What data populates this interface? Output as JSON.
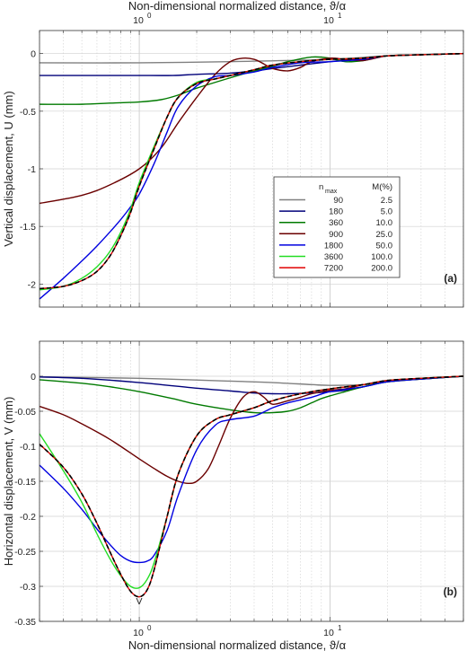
{
  "figure": {
    "top_xlabel": "Non-dimensional normalized distance, ϑ/α",
    "bottom_xlabel": "Non-dimensional normalized distance, ϑ/α",
    "x_tick_labels": [
      "10",
      "10"
    ],
    "x_tick_exponents": [
      "0",
      "1"
    ],
    "v_marker": "V"
  },
  "legend": {
    "header_n": "n",
    "header_n_sub": "max",
    "header_m": "M(%)",
    "entries": [
      {
        "n": "90",
        "m": "2.5",
        "color": "#808080"
      },
      {
        "n": "180",
        "m": "5.0",
        "color": "#00007a"
      },
      {
        "n": "360",
        "m": "10.0",
        "color": "#007a00"
      },
      {
        "n": "900",
        "m": "25.0",
        "color": "#6b0000"
      },
      {
        "n": "1800",
        "m": "50.0",
        "color": "#0000e0"
      },
      {
        "n": "3600",
        "m": "100.0",
        "color": "#22dd22"
      },
      {
        "n": "7200",
        "m": "200.0",
        "color": "#e00000"
      }
    ],
    "exact_style": "black dashed"
  },
  "chart_data": [
    {
      "type": "line",
      "panel_label": "(a)",
      "xlabel": "Non-dimensional normalized distance, ϑ/α",
      "ylabel": "Vertical displacement, U (mm)",
      "xscale": "log",
      "xlim": [
        0.3,
        50
      ],
      "ylim": [
        -2.2,
        0.2
      ],
      "yticks": [
        "0",
        "-0.5",
        "-1",
        "-1.5",
        "-2"
      ],
      "grid": true,
      "legend_position": "right",
      "series": [
        {
          "name": "90",
          "color": "#808080",
          "x": [
            0.3,
            1,
            3,
            10,
            20,
            50
          ],
          "y": [
            -0.08,
            -0.08,
            -0.07,
            -0.05,
            -0.02,
            0
          ]
        },
        {
          "name": "180",
          "color": "#00007a",
          "x": [
            0.3,
            0.5,
            0.7,
            1,
            1.5,
            2,
            3,
            4,
            5,
            7,
            10,
            15,
            20,
            30,
            50
          ],
          "y": [
            -0.19,
            -0.19,
            -0.19,
            -0.19,
            -0.19,
            -0.18,
            -0.17,
            -0.15,
            -0.13,
            -0.1,
            -0.07,
            -0.04,
            -0.02,
            -0.01,
            0
          ]
        },
        {
          "name": "360",
          "color": "#007a00",
          "x": [
            0.3,
            0.5,
            0.7,
            1,
            1.3,
            1.6,
            2,
            3,
            4,
            5,
            6,
            8,
            10,
            12,
            15,
            20,
            30,
            50
          ],
          "y": [
            -0.44,
            -0.44,
            -0.43,
            -0.42,
            -0.4,
            -0.36,
            -0.3,
            -0.21,
            -0.15,
            -0.11,
            -0.07,
            -0.03,
            -0.04,
            -0.07,
            -0.06,
            -0.02,
            -0.01,
            0
          ]
        },
        {
          "name": "900",
          "color": "#6b0000",
          "x": [
            0.3,
            0.5,
            0.7,
            1,
            1.3,
            1.6,
            2,
            2.5,
            3,
            3.5,
            4,
            4.5,
            5,
            6,
            7,
            8,
            10,
            12,
            15,
            20,
            30,
            50
          ],
          "y": [
            -1.3,
            -1.23,
            -1.14,
            -1.0,
            -0.82,
            -0.6,
            -0.38,
            -0.18,
            -0.07,
            -0.04,
            -0.05,
            -0.09,
            -0.13,
            -0.15,
            -0.12,
            -0.07,
            -0.04,
            -0.05,
            -0.06,
            -0.02,
            -0.01,
            0
          ]
        },
        {
          "name": "1800",
          "color": "#0000e0",
          "x": [
            0.3,
            0.4,
            0.5,
            0.6,
            0.7,
            0.8,
            0.9,
            1,
            1.2,
            1.4,
            1.6,
            2,
            2.5,
            3,
            4,
            5,
            7,
            10,
            15,
            20,
            30,
            50
          ],
          "y": [
            -2.13,
            -1.95,
            -1.8,
            -1.67,
            -1.55,
            -1.44,
            -1.33,
            -1.22,
            -0.95,
            -0.68,
            -0.46,
            -0.28,
            -0.2,
            -0.19,
            -0.16,
            -0.12,
            -0.08,
            -0.07,
            -0.05,
            -0.02,
            -0.01,
            0
          ]
        },
        {
          "name": "3600",
          "color": "#22dd22",
          "x": [
            0.3,
            0.4,
            0.5,
            0.6,
            0.7,
            0.8,
            0.9,
            1,
            1.2,
            1.4,
            1.6,
            2,
            2.5,
            3,
            4,
            5,
            7,
            10,
            15,
            20,
            30,
            50
          ],
          "y": [
            -2.05,
            -2.02,
            -1.95,
            -1.85,
            -1.72,
            -1.55,
            -1.35,
            -1.12,
            -0.8,
            -0.55,
            -0.38,
            -0.25,
            -0.22,
            -0.19,
            -0.14,
            -0.1,
            -0.07,
            -0.05,
            -0.04,
            -0.02,
            -0.01,
            0
          ]
        },
        {
          "name": "7200",
          "color": "#e00000",
          "x": [
            0.3,
            0.4,
            0.5,
            0.6,
            0.7,
            0.8,
            0.9,
            1,
            1.2,
            1.4,
            1.6,
            2,
            2.5,
            3,
            4,
            5,
            7,
            10,
            15,
            20,
            30,
            50
          ],
          "y": [
            -2.04,
            -2.02,
            -1.97,
            -1.89,
            -1.76,
            -1.58,
            -1.38,
            -1.15,
            -0.82,
            -0.55,
            -0.38,
            -0.26,
            -0.22,
            -0.19,
            -0.14,
            -0.1,
            -0.07,
            -0.05,
            -0.04,
            -0.02,
            -0.01,
            0
          ]
        },
        {
          "name": "",
          "dashed": true,
          "color": "#000000",
          "x": [
            0.3,
            0.4,
            0.5,
            0.6,
            0.7,
            0.8,
            0.9,
            1,
            1.2,
            1.4,
            1.6,
            2,
            2.5,
            3,
            4,
            5,
            7,
            10,
            15,
            20,
            30,
            50
          ],
          "y": [
            -2.04,
            -2.02,
            -1.97,
            -1.89,
            -1.76,
            -1.58,
            -1.38,
            -1.15,
            -0.82,
            -0.55,
            -0.38,
            -0.26,
            -0.22,
            -0.19,
            -0.14,
            -0.1,
            -0.07,
            -0.05,
            -0.04,
            -0.02,
            -0.01,
            0
          ]
        }
      ]
    },
    {
      "type": "line",
      "panel_label": "(b)",
      "xlabel": "Non-dimensional normalized distance, ϑ/α",
      "ylabel": "Horizontal displacement, V (mm)",
      "xscale": "log",
      "xlim": [
        0.3,
        50
      ],
      "ylim": [
        -0.35,
        0.05
      ],
      "yticks": [
        "0",
        "-0.05",
        "-0.1",
        "-0.15",
        "-0.2",
        "-0.25",
        "-0.3",
        "-0.35"
      ],
      "grid": true,
      "series": [
        {
          "name": "90",
          "color": "#808080",
          "x": [
            0.3,
            1,
            3,
            5,
            8,
            10,
            15,
            20,
            30,
            50
          ],
          "y": [
            -0.001,
            -0.003,
            -0.007,
            -0.009,
            -0.012,
            -0.013,
            -0.012,
            -0.008,
            -0.004,
            0
          ]
        },
        {
          "name": "180",
          "color": "#00007a",
          "x": [
            0.3,
            0.5,
            1,
            2,
            3,
            4,
            5,
            6,
            8,
            10,
            12,
            15,
            20,
            30,
            50
          ],
          "y": [
            -0.001,
            -0.003,
            -0.009,
            -0.017,
            -0.021,
            -0.024,
            -0.025,
            -0.025,
            -0.024,
            -0.022,
            -0.02,
            -0.015,
            -0.008,
            -0.004,
            0
          ]
        },
        {
          "name": "360",
          "color": "#007a00",
          "x": [
            0.3,
            0.5,
            0.7,
            1,
            1.5,
            2,
            3,
            4,
            5,
            6,
            7,
            8,
            9,
            10,
            12,
            15,
            20,
            30,
            50
          ],
          "y": [
            -0.005,
            -0.01,
            -0.015,
            -0.022,
            -0.032,
            -0.04,
            -0.048,
            -0.052,
            -0.052,
            -0.05,
            -0.045,
            -0.038,
            -0.032,
            -0.028,
            -0.022,
            -0.015,
            -0.008,
            -0.004,
            0
          ]
        },
        {
          "name": "900",
          "color": "#6b0000",
          "x": [
            0.3,
            0.4,
            0.5,
            0.7,
            1,
            1.2,
            1.4,
            1.6,
            1.8,
            2,
            2.3,
            2.6,
            3,
            3.5,
            4,
            4.5,
            5,
            6,
            7,
            8,
            10,
            12,
            15,
            20,
            30,
            50
          ],
          "y": [
            -0.043,
            -0.055,
            -0.068,
            -0.09,
            -0.118,
            -0.132,
            -0.143,
            -0.15,
            -0.153,
            -0.15,
            -0.132,
            -0.1,
            -0.06,
            -0.03,
            -0.022,
            -0.03,
            -0.04,
            -0.035,
            -0.03,
            -0.025,
            -0.02,
            -0.018,
            -0.012,
            -0.006,
            -0.003,
            0
          ]
        },
        {
          "name": "1800",
          "color": "#0000e0",
          "x": [
            0.3,
            0.4,
            0.5,
            0.6,
            0.7,
            0.8,
            0.9,
            1,
            1.1,
            1.2,
            1.4,
            1.6,
            2,
            2.5,
            3,
            4,
            5,
            6,
            8,
            10,
            15,
            20,
            30,
            50
          ],
          "y": [
            -0.127,
            -0.16,
            -0.19,
            -0.218,
            -0.24,
            -0.256,
            -0.264,
            -0.266,
            -0.264,
            -0.255,
            -0.22,
            -0.17,
            -0.105,
            -0.07,
            -0.062,
            -0.057,
            -0.045,
            -0.038,
            -0.03,
            -0.022,
            -0.015,
            -0.008,
            -0.004,
            0
          ]
        },
        {
          "name": "3600",
          "color": "#22dd22",
          "x": [
            0.3,
            0.4,
            0.5,
            0.6,
            0.7,
            0.8,
            0.9,
            1,
            1.1,
            1.2,
            1.4,
            1.6,
            2,
            2.5,
            3,
            4,
            5,
            7,
            10,
            15,
            20,
            30,
            50
          ],
          "y": [
            -0.082,
            -0.135,
            -0.18,
            -0.225,
            -0.26,
            -0.285,
            -0.3,
            -0.302,
            -0.29,
            -0.265,
            -0.2,
            -0.14,
            -0.085,
            -0.062,
            -0.055,
            -0.045,
            -0.035,
            -0.025,
            -0.018,
            -0.012,
            -0.006,
            -0.003,
            0
          ]
        },
        {
          "name": "7200",
          "color": "#e00000",
          "x": [
            0.3,
            0.4,
            0.5,
            0.6,
            0.7,
            0.8,
            0.9,
            1,
            1.1,
            1.2,
            1.4,
            1.6,
            2,
            2.5,
            3,
            4,
            5,
            7,
            10,
            15,
            20,
            30,
            50
          ],
          "y": [
            -0.097,
            -0.13,
            -0.168,
            -0.21,
            -0.25,
            -0.283,
            -0.307,
            -0.315,
            -0.305,
            -0.275,
            -0.2,
            -0.14,
            -0.085,
            -0.062,
            -0.055,
            -0.045,
            -0.035,
            -0.025,
            -0.018,
            -0.012,
            -0.006,
            -0.003,
            0
          ]
        },
        {
          "name": "",
          "dashed": true,
          "color": "#000000",
          "x": [
            0.3,
            0.4,
            0.5,
            0.6,
            0.7,
            0.8,
            0.9,
            1,
            1.1,
            1.2,
            1.4,
            1.6,
            2,
            2.5,
            3,
            4,
            5,
            7,
            10,
            15,
            20,
            30,
            50
          ],
          "y": [
            -0.097,
            -0.13,
            -0.168,
            -0.21,
            -0.25,
            -0.283,
            -0.307,
            -0.315,
            -0.305,
            -0.275,
            -0.2,
            -0.14,
            -0.085,
            -0.062,
            -0.055,
            -0.045,
            -0.035,
            -0.025,
            -0.018,
            -0.012,
            -0.006,
            -0.003,
            0
          ]
        }
      ]
    }
  ]
}
